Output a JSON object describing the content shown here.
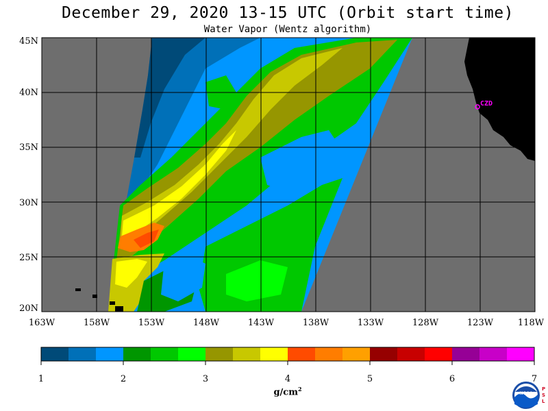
{
  "title": "December 29, 2020  13-15 UTC  (Orbit start time)",
  "subtitle": "Water Vapor (Wentz algorithm)",
  "map": {
    "background_color": "#6e6e6e",
    "land_color": "#000000",
    "grid_color": "#000000",
    "lat_labels": [
      "45N",
      "40N",
      "35N",
      "30N",
      "25N",
      "20N"
    ],
    "lon_labels": [
      "163W",
      "158W",
      "153W",
      "148W",
      "143W",
      "138W",
      "133W",
      "128W",
      "123W",
      "118W"
    ],
    "station": {
      "label": "CZD",
      "color": "#ff00ff"
    }
  },
  "colorbar": {
    "colors": [
      "#004a78",
      "#0070b8",
      "#0096ff",
      "#009600",
      "#00c800",
      "#00ff00",
      "#969600",
      "#c8c800",
      "#ffff00",
      "#ff4b00",
      "#ff7d00",
      "#ffa000",
      "#960000",
      "#c80000",
      "#ff0000",
      "#960096",
      "#c800c8",
      "#ff00ff"
    ],
    "ticks": [
      "1",
      "2",
      "3",
      "4",
      "5",
      "6",
      "7"
    ],
    "units": "g/cm",
    "units_exp": "2"
  },
  "logo": {
    "text": "NOAA",
    "side_letters": [
      "P",
      "S",
      "L"
    ]
  }
}
